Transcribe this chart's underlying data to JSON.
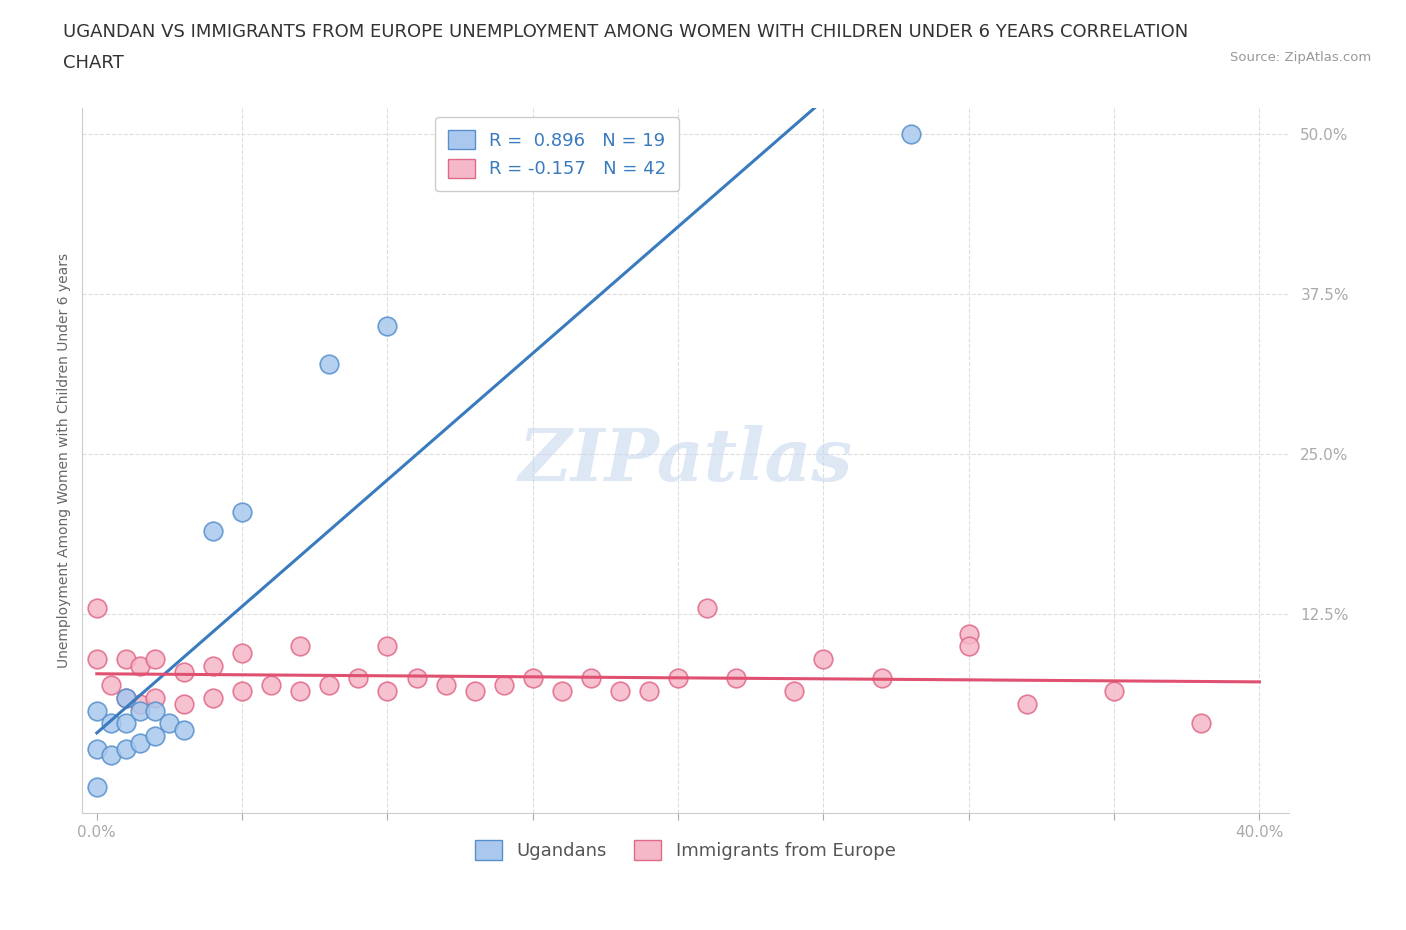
{
  "title_line1": "UGANDAN VS IMMIGRANTS FROM EUROPE UNEMPLOYMENT AMONG WOMEN WITH CHILDREN UNDER 6 YEARS CORRELATION",
  "title_line2": "CHART",
  "source_text": "Source: ZipAtlas.com",
  "ylabel": "Unemployment Among Women with Children Under 6 years",
  "xlim": [
    -0.005,
    0.41
  ],
  "ylim": [
    -0.03,
    0.52
  ],
  "xticks": [
    0.0,
    0.05,
    0.1,
    0.15,
    0.2,
    0.25,
    0.3,
    0.35,
    0.4
  ],
  "yticks": [
    0.0,
    0.125,
    0.25,
    0.375,
    0.5
  ],
  "xticklabels": [
    "0.0%",
    "",
    "",
    "",
    "",
    "",
    "",
    "",
    "40.0%"
  ],
  "yticklabels_right": [
    "",
    "12.5%",
    "25.0%",
    "37.5%",
    "50.0%"
  ],
  "background_color": "#ffffff",
  "watermark_text": "ZIPatlas",
  "ugandan_color": "#aac8ee",
  "europe_color": "#f5b8c8",
  "ugandan_edge_color": "#5590cc",
  "europe_edge_color": "#e06888",
  "ugandan_line_color": "#3a7bbf",
  "europe_line_color": "#e05070",
  "legend_label_ugandan": "Ugandans",
  "legend_label_europe": "Immigrants from Europe",
  "legend_R_ugandan": "R =  0.896",
  "legend_N_ugandan": "N = 19",
  "legend_R_europe": "R = -0.157",
  "legend_N_europe": "N = 42",
  "ugandan_x": [
    0.0,
    0.0,
    0.0,
    0.005,
    0.005,
    0.01,
    0.01,
    0.01,
    0.015,
    0.015,
    0.02,
    0.02,
    0.025,
    0.03,
    0.04,
    0.05,
    0.08,
    0.1,
    0.28
  ],
  "ugandan_y": [
    -0.01,
    0.02,
    0.05,
    0.015,
    0.04,
    0.02,
    0.04,
    0.06,
    0.025,
    0.05,
    0.03,
    0.05,
    0.04,
    0.035,
    0.19,
    0.205,
    0.32,
    0.35,
    0.5
  ],
  "europe_x": [
    0.0,
    0.0,
    0.005,
    0.01,
    0.01,
    0.015,
    0.015,
    0.02,
    0.02,
    0.03,
    0.03,
    0.04,
    0.04,
    0.05,
    0.05,
    0.06,
    0.07,
    0.07,
    0.08,
    0.09,
    0.1,
    0.1,
    0.11,
    0.12,
    0.13,
    0.14,
    0.15,
    0.16,
    0.17,
    0.18,
    0.19,
    0.2,
    0.21,
    0.22,
    0.24,
    0.25,
    0.27,
    0.3,
    0.3,
    0.32,
    0.35,
    0.38
  ],
  "europe_y": [
    0.09,
    0.13,
    0.07,
    0.06,
    0.09,
    0.055,
    0.085,
    0.06,
    0.09,
    0.055,
    0.08,
    0.06,
    0.085,
    0.065,
    0.095,
    0.07,
    0.065,
    0.1,
    0.07,
    0.075,
    0.065,
    0.1,
    0.075,
    0.07,
    0.065,
    0.07,
    0.075,
    0.065,
    0.075,
    0.065,
    0.065,
    0.075,
    0.13,
    0.075,
    0.065,
    0.09,
    0.075,
    0.11,
    0.1,
    0.055,
    0.065,
    0.04
  ],
  "grid_color": "#dddddd",
  "spine_color": "#cccccc",
  "tick_color": "#aaaaaa",
  "title_fontsize": 13,
  "axis_label_fontsize": 10,
  "tick_fontsize": 11,
  "legend_fontsize": 13,
  "watermark_fontsize": 52,
  "watermark_color": "#c8d8ee",
  "watermark_alpha": 0.6,
  "scatter_size": 180,
  "scatter_linewidth": 1.2
}
